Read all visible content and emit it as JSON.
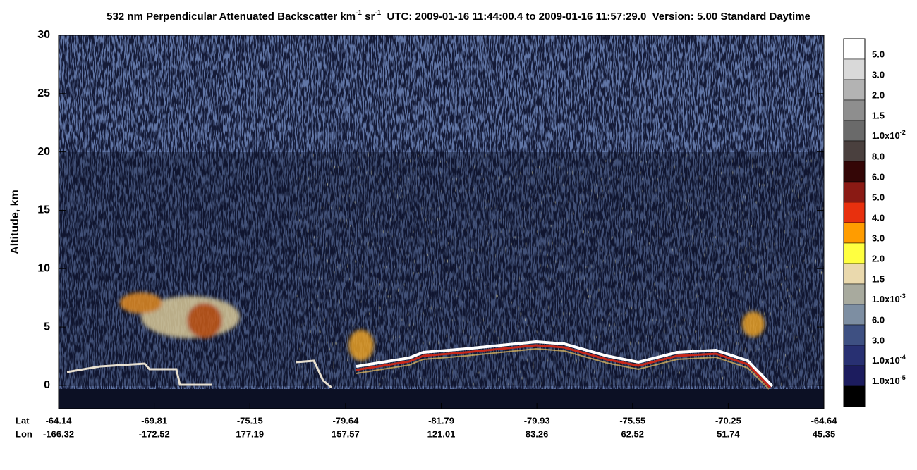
{
  "chart_data": {
    "type": "lidar-curtain",
    "title_parts": [
      "532 nm Perpendicular Attenuated Backscatter km",
      "-1",
      " sr",
      "-1",
      "  UTC: 2009-01-16 11:44:00.4 to 2009-01-16 11:57:29.0  Version: 5.00 Standard Daytime"
    ],
    "ylabel": "Altitude, km",
    "ylim": [
      -2,
      30
    ],
    "yticks": [
      0,
      5,
      10,
      15,
      20,
      25,
      30
    ],
    "x_rows": [
      {
        "name": "Lat",
        "labels": [
          -64.14,
          -69.81,
          -75.15,
          -79.64,
          -81.79,
          -79.93,
          -75.55,
          -70.25,
          -64.64
        ]
      },
      {
        "name": "Lon",
        "labels": [
          -166.32,
          -172.52,
          177.19,
          157.57,
          121.01,
          83.26,
          62.52,
          51.74,
          45.35
        ]
      }
    ],
    "colorbar": {
      "labels": [
        "5.0",
        "3.0",
        "2.0",
        "1.5",
        "1.0x10-2",
        "8.0",
        "6.0",
        "5.0",
        "4.0",
        "3.0",
        "2.0",
        "1.5",
        "1.0x10-3",
        "6.0",
        "3.0",
        "1.0x10-4",
        "1.0x10-5"
      ],
      "colors": [
        "#ffffff",
        "#d9d9d9",
        "#b3b3b3",
        "#8e8e8e",
        "#6a6a6a",
        "#4a403e",
        "#340606",
        "#8a1a14",
        "#e8300e",
        "#ff9c00",
        "#ffff40",
        "#ead9ad",
        "#a8aa9e",
        "#7d8ea2",
        "#3e5082",
        "#283072",
        "#1c1c5e",
        "#000000"
      ]
    }
  }
}
